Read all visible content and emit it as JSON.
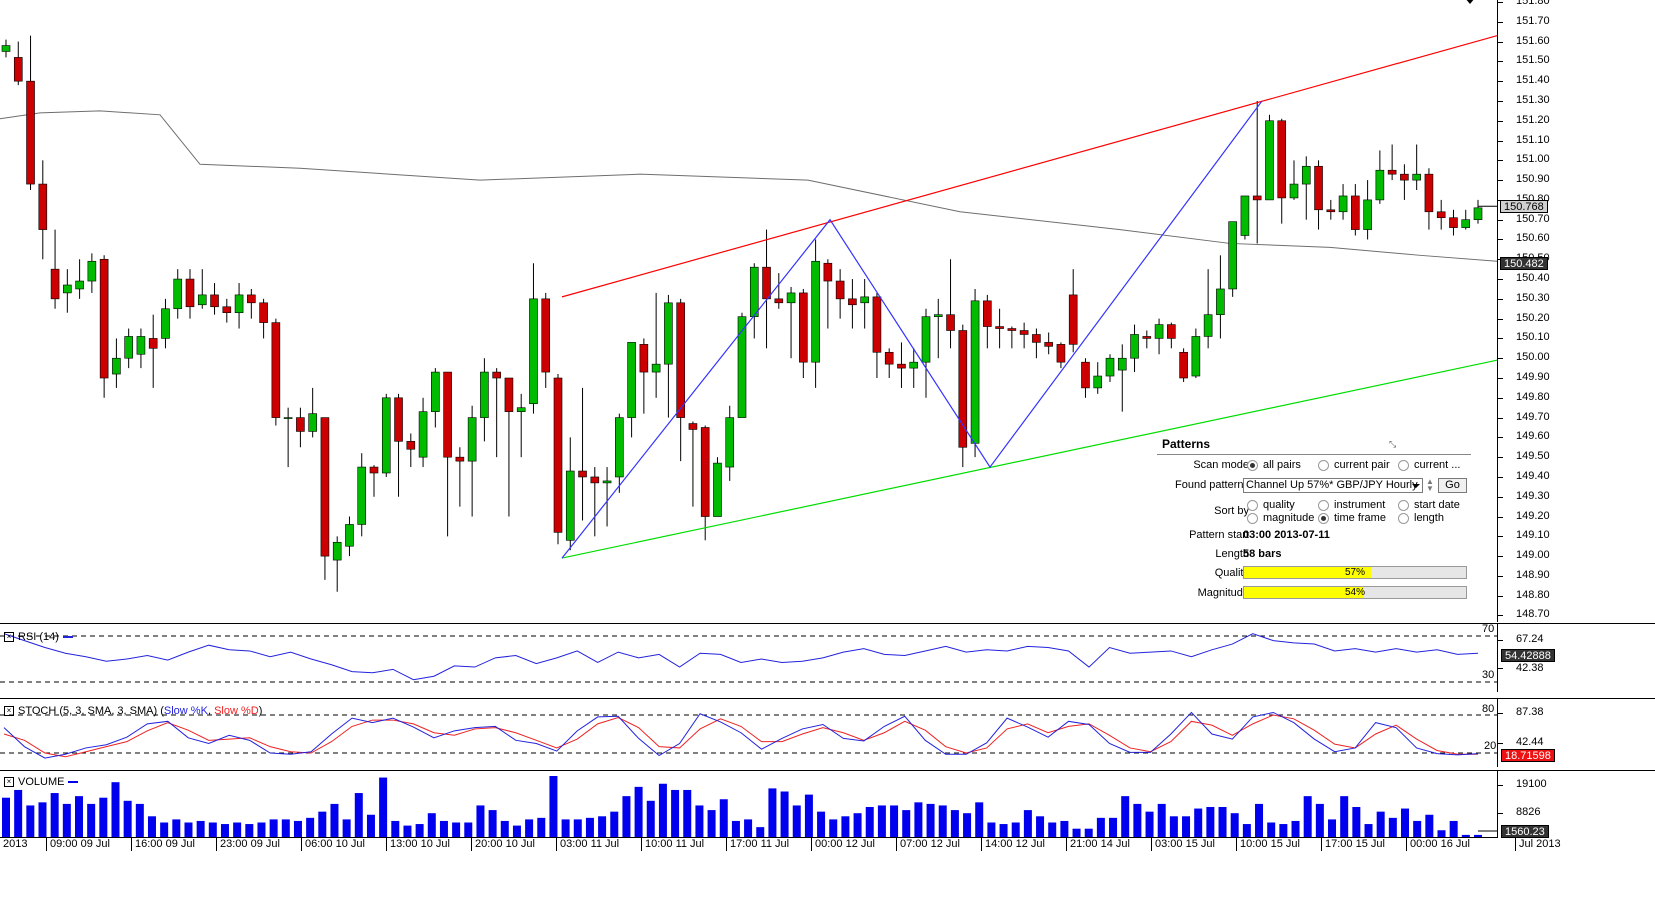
{
  "colors": {
    "up": "#00bb00",
    "down": "#cc0000",
    "ma": "#6e6e6e",
    "resistance": "#ff0000",
    "support": "#00dd00",
    "zigzag": "#3333ff",
    "rsi": "#2222dd",
    "stoch_k": "#2222dd",
    "stoch_d": "#ee2222",
    "volume": "#0000ee",
    "progress": "#ffff00"
  },
  "price_axis": {
    "ticks": [
      "151.80",
      "151.70",
      "151.60",
      "151.50",
      "151.40",
      "151.30",
      "151.20",
      "151.10",
      "151.00",
      "150.90",
      "150.80",
      "150.70",
      "150.60",
      "150.50",
      "150.40",
      "150.30",
      "150.20",
      "150.10",
      "150.00",
      "149.90",
      "149.80",
      "149.70",
      "149.60",
      "149.50",
      "149.40",
      "149.30",
      "149.20",
      "149.10",
      "149.00",
      "148.90",
      "148.80",
      "148.70"
    ],
    "current_price": "150.768",
    "ma_price": "150.482"
  },
  "candles": [
    [
      151.55,
      151.58,
      151.61,
      151.52
    ],
    [
      151.52,
      151.4,
      151.6,
      151.38
    ],
    [
      151.4,
      150.88,
      151.63,
      150.85
    ],
    [
      150.88,
      150.65,
      151.0,
      150.5
    ],
    [
      150.45,
      150.3,
      150.65,
      150.25
    ],
    [
      150.33,
      150.37,
      150.45,
      150.23
    ],
    [
      150.35,
      150.39,
      150.5,
      150.3
    ],
    [
      150.39,
      150.49,
      150.53,
      150.33
    ],
    [
      150.5,
      149.9,
      150.52,
      149.8
    ],
    [
      149.92,
      150.0,
      150.1,
      149.85
    ],
    [
      150.0,
      150.11,
      150.15,
      149.95
    ],
    [
      150.02,
      150.11,
      150.15,
      149.95
    ],
    [
      150.1,
      150.05,
      150.22,
      149.85
    ],
    [
      150.1,
      150.25,
      150.3,
      150.05
    ],
    [
      150.25,
      150.4,
      150.45,
      150.2
    ],
    [
      150.4,
      150.26,
      150.45,
      150.2
    ],
    [
      150.27,
      150.32,
      150.45,
      150.25
    ],
    [
      150.32,
      150.26,
      150.38,
      150.22
    ],
    [
      150.26,
      150.23,
      150.3,
      150.18
    ],
    [
      150.23,
      150.32,
      150.38,
      150.15
    ],
    [
      150.32,
      150.28,
      150.35,
      150.2
    ],
    [
      150.28,
      150.18,
      150.3,
      150.1
    ],
    [
      150.18,
      149.7,
      150.2,
      149.66
    ],
    [
      149.7,
      149.7,
      149.75,
      149.45
    ],
    [
      149.7,
      149.63,
      149.75,
      149.55
    ],
    [
      149.63,
      149.72,
      149.85,
      149.6
    ],
    [
      149.7,
      149.0,
      149.7,
      148.88
    ],
    [
      148.98,
      149.07,
      149.1,
      148.82
    ],
    [
      149.05,
      149.16,
      149.2,
      149.0
    ],
    [
      149.16,
      149.45,
      149.52,
      149.1
    ],
    [
      149.45,
      149.42,
      149.46,
      149.3
    ],
    [
      149.42,
      149.8,
      149.82,
      149.4
    ],
    [
      149.8,
      149.58,
      149.82,
      149.3
    ],
    [
      149.58,
      149.54,
      149.62,
      149.45
    ],
    [
      149.5,
      149.73,
      149.8,
      149.45
    ],
    [
      149.73,
      149.93,
      149.95,
      149.65
    ],
    [
      149.93,
      149.5,
      149.93,
      149.1
    ],
    [
      149.5,
      149.48,
      149.55,
      149.25
    ],
    [
      149.48,
      149.7,
      149.76,
      149.2
    ],
    [
      149.7,
      149.93,
      150.0,
      149.58
    ],
    [
      149.93,
      149.9,
      149.95,
      149.5
    ],
    [
      149.9,
      149.73,
      149.82,
      149.2
    ],
    [
      149.73,
      149.75,
      149.82,
      149.5
    ],
    [
      149.77,
      150.3,
      150.48,
      149.72
    ],
    [
      150.3,
      149.93,
      150.33,
      149.85
    ],
    [
      149.9,
      149.12,
      149.92,
      149.06
    ],
    [
      149.08,
      149.43,
      149.6,
      149.03
    ],
    [
      149.43,
      149.4,
      149.85,
      149.18
    ],
    [
      149.4,
      149.37,
      149.45,
      149.1
    ],
    [
      149.37,
      149.38,
      149.45,
      149.15
    ],
    [
      149.4,
      149.7,
      149.72,
      149.32
    ],
    [
      149.7,
      150.08,
      150.08,
      149.6
    ],
    [
      150.07,
      149.93,
      150.1,
      149.72
    ],
    [
      149.93,
      149.97,
      150.33,
      149.8
    ],
    [
      149.97,
      150.28,
      150.32,
      149.7
    ],
    [
      150.28,
      149.7,
      150.3,
      149.48
    ],
    [
      149.67,
      149.64,
      149.68,
      149.25
    ],
    [
      149.65,
      149.2,
      149.66,
      149.08
    ],
    [
      149.2,
      149.47,
      149.5,
      149.2
    ],
    [
      149.45,
      149.7,
      149.76,
      149.38
    ],
    [
      149.7,
      150.21,
      150.23,
      149.72
    ],
    [
      150.21,
      150.46,
      150.48,
      150.1
    ],
    [
      150.46,
      150.3,
      150.65,
      150.05
    ],
    [
      150.3,
      150.28,
      150.43,
      150.25
    ],
    [
      150.28,
      150.33,
      150.36,
      150.0
    ],
    [
      150.33,
      149.98,
      150.35,
      149.9
    ],
    [
      149.98,
      150.49,
      150.6,
      149.85
    ],
    [
      150.48,
      150.39,
      150.5,
      150.15
    ],
    [
      150.39,
      150.3,
      150.45,
      150.2
    ],
    [
      150.3,
      150.27,
      150.4,
      150.15
    ],
    [
      150.28,
      150.31,
      150.4,
      150.15
    ],
    [
      150.31,
      150.03,
      150.33,
      149.9
    ],
    [
      150.03,
      149.97,
      150.05,
      149.9
    ],
    [
      149.97,
      149.95,
      150.08,
      149.85
    ],
    [
      149.95,
      149.98,
      150.05,
      149.85
    ],
    [
      149.98,
      150.21,
      150.25,
      149.8
    ],
    [
      150.21,
      150.22,
      150.3,
      150.0
    ],
    [
      150.22,
      150.14,
      150.5,
      150.05
    ],
    [
      150.14,
      149.55,
      150.17,
      149.45
    ],
    [
      149.57,
      150.29,
      150.35,
      149.5
    ],
    [
      150.29,
      150.16,
      150.32,
      150.05
    ],
    [
      150.16,
      150.15,
      150.25,
      150.05
    ],
    [
      150.15,
      150.14,
      150.16,
      150.05
    ],
    [
      150.14,
      150.12,
      150.18,
      150.05
    ],
    [
      150.12,
      150.08,
      150.15,
      150.0
    ],
    [
      150.08,
      150.06,
      150.13,
      150.02
    ],
    [
      150.07,
      149.98,
      150.08,
      149.95
    ],
    [
      150.32,
      150.07,
      150.45,
      150.03
    ],
    [
      149.98,
      149.85,
      150.0,
      149.8
    ],
    [
      149.85,
      149.91,
      149.98,
      149.82
    ],
    [
      149.91,
      150.0,
      150.02,
      149.88
    ],
    [
      149.94,
      150.0,
      150.07,
      149.73
    ],
    [
      150.0,
      150.12,
      150.17,
      149.93
    ],
    [
      150.11,
      150.1,
      150.14,
      150.05
    ],
    [
      150.1,
      150.17,
      150.2,
      150.02
    ],
    [
      150.17,
      150.1,
      150.18,
      150.05
    ],
    [
      150.03,
      149.9,
      150.05,
      149.88
    ],
    [
      149.91,
      150.11,
      150.15,
      149.9
    ],
    [
      150.11,
      150.22,
      150.45,
      150.05
    ],
    [
      150.22,
      150.35,
      150.52,
      150.1
    ],
    [
      150.35,
      150.69,
      150.5,
      150.31
    ],
    [
      150.62,
      150.82,
      150.75,
      150.6
    ],
    [
      150.82,
      150.8,
      151.3,
      150.58
    ],
    [
      150.8,
      151.2,
      151.23,
      150.8
    ],
    [
      151.2,
      150.81,
      151.21,
      150.68
    ],
    [
      150.81,
      150.88,
      151.0,
      150.8
    ],
    [
      150.88,
      150.97,
      151.02,
      150.7
    ],
    [
      150.97,
      150.75,
      151.0,
      150.65
    ],
    [
      150.75,
      150.74,
      150.8,
      150.7
    ],
    [
      150.74,
      150.82,
      150.88,
      150.7
    ],
    [
      150.82,
      150.65,
      150.88,
      150.62
    ],
    [
      150.65,
      150.8,
      150.9,
      150.6
    ],
    [
      150.8,
      150.95,
      151.05,
      150.78
    ],
    [
      150.95,
      150.93,
      151.08,
      150.9
    ],
    [
      150.93,
      150.9,
      150.98,
      150.8
    ],
    [
      150.9,
      150.93,
      151.08,
      150.85
    ],
    [
      150.93,
      150.74,
      150.96,
      150.65
    ],
    [
      150.74,
      150.71,
      150.8,
      150.65
    ],
    [
      150.71,
      150.66,
      150.75,
      150.62
    ],
    [
      150.66,
      150.7,
      150.75,
      150.65
    ],
    [
      150.7,
      150.76,
      150.8,
      150.68
    ]
  ],
  "ma_points": [
    [
      0,
      151.21
    ],
    [
      40,
      151.24
    ],
    [
      100,
      151.25
    ],
    [
      160,
      151.23
    ],
    [
      200,
      150.98
    ],
    [
      300,
      150.96
    ],
    [
      480,
      150.9
    ],
    [
      640,
      150.93
    ],
    [
      808,
      150.9
    ],
    [
      960,
      150.74
    ],
    [
      1120,
      150.65
    ],
    [
      1230,
      150.58
    ],
    [
      1330,
      150.56
    ],
    [
      1420,
      150.52
    ],
    [
      1497,
      150.49
    ]
  ],
  "pattern_lines": {
    "resistance": [
      [
        562,
        150.31
      ],
      [
        1497,
        151.63
      ]
    ],
    "support": [
      [
        562,
        148.99
      ],
      [
        1497,
        149.99
      ]
    ],
    "zigzag": [
      [
        562,
        148.99
      ],
      [
        830,
        150.7
      ],
      [
        990,
        149.45
      ],
      [
        1262,
        151.3
      ]
    ]
  },
  "patterns": {
    "title": "Patterns",
    "scan_mode_label": "Scan mode",
    "scan_options": [
      "all pairs",
      "current pair",
      "current ..."
    ],
    "found_patterns_label": "Found patterns",
    "found_value": "Channel Up 57%* GBP/JPY Hourly",
    "go_label": "Go",
    "sort_by_label": "Sort by",
    "sort_options": [
      "quality",
      "instrument",
      "start date",
      "magnitude",
      "time frame",
      "length"
    ],
    "pattern_start_label": "Pattern start",
    "pattern_start_value": "03:00 2013-07-11",
    "length_label": "Length",
    "length_value": "58 bars",
    "quality_label": "Quality",
    "quality_value": "57%",
    "quality_pct": 57,
    "magnitude_label": "Magnitude",
    "magnitude_value": "54%",
    "magnitude_pct": 54
  },
  "rsi": {
    "label": "RSI (14)",
    "level_high": "70",
    "level_low": "30",
    "ticks": [
      "67.24",
      "42.38"
    ],
    "current": "54.42888",
    "series": [
      72,
      66,
      60,
      55,
      52,
      48,
      50,
      53,
      49,
      56,
      62,
      58,
      57,
      52,
      56,
      50,
      45,
      39,
      38,
      41,
      32,
      35,
      44,
      43,
      51,
      53,
      46,
      51,
      57,
      47,
      56,
      51,
      54,
      43,
      55,
      54,
      47,
      50,
      47,
      48,
      51,
      56,
      59,
      54,
      53,
      57,
      61,
      56,
      58,
      57,
      61,
      60,
      57,
      43,
      60,
      55,
      56,
      57,
      52,
      58,
      63,
      72,
      66,
      64,
      63,
      57,
      59,
      56,
      59,
      56,
      58,
      54,
      55
    ]
  },
  "stoch": {
    "label": "STOCH (5, 3, SMA, 3, SMA)",
    "k_label": "Slow %K",
    "d_label": "Slow %D",
    "level_high": "80",
    "level_low": "20",
    "ticks": [
      "87.38",
      "42.44"
    ],
    "current": "18.71598",
    "k_series": [
      60,
      30,
      12,
      18,
      28,
      33,
      45,
      66,
      70,
      44,
      35,
      48,
      40,
      20,
      18,
      22,
      50,
      75,
      68,
      75,
      61,
      44,
      55,
      60,
      62,
      40,
      35,
      23,
      55,
      77,
      78,
      43,
      16,
      35,
      82,
      69,
      52,
      26,
      43,
      58,
      65,
      43,
      39,
      62,
      78,
      40,
      18,
      18,
      36,
      75,
      61,
      45,
      70,
      65,
      35,
      21,
      21,
      50,
      84,
      50,
      42,
      77,
      84,
      68,
      42,
      22,
      28,
      68,
      60,
      28,
      19,
      17,
      19
    ],
    "d_series": [
      50,
      40,
      20,
      14,
      22,
      30,
      38,
      55,
      68,
      56,
      40,
      42,
      44,
      30,
      22,
      20,
      38,
      62,
      72,
      72,
      66,
      52,
      48,
      58,
      60,
      52,
      40,
      28,
      42,
      66,
      76,
      60,
      30,
      28,
      58,
      74,
      62,
      38,
      38,
      50,
      60,
      52,
      40,
      52,
      70,
      56,
      30,
      20,
      28,
      58,
      66,
      52,
      62,
      66,
      48,
      28,
      22,
      38,
      70,
      64,
      48,
      66,
      80,
      74,
      56,
      34,
      28,
      50,
      64,
      42,
      24,
      18,
      18
    ]
  },
  "volume": {
    "label": "VOLUME",
    "ticks": [
      "19100",
      "8826"
    ],
    "current": "1560.23",
    "series": [
      26,
      31,
      21,
      23,
      29,
      22,
      27,
      22,
      26,
      36,
      24,
      22,
      14,
      10,
      12,
      10,
      11,
      10,
      9,
      10,
      9,
      10,
      12,
      12,
      11,
      13,
      17,
      22,
      12,
      29,
      15,
      39,
      11,
      8,
      9,
      16,
      11,
      10,
      10,
      21,
      18,
      11,
      8,
      12,
      13,
      40,
      12,
      12,
      13,
      14,
      17,
      27,
      33,
      24,
      35,
      31,
      31,
      21,
      18,
      25,
      11,
      12,
      7,
      32,
      30,
      21,
      28,
      17,
      12,
      14,
      16,
      20,
      21,
      21,
      18,
      23,
      22,
      21,
      18,
      16,
      23,
      10,
      9,
      10,
      18,
      14,
      10,
      11,
      6,
      6,
      13,
      13,
      27,
      22,
      17,
      22,
      14,
      14,
      19,
      20,
      20,
      16,
      9,
      22,
      10,
      9,
      11,
      27,
      22,
      12,
      27,
      20,
      9,
      17,
      13,
      19,
      11,
      15,
      5,
      11,
      2,
      2
    ]
  },
  "time_axis": [
    "2013",
    "09:00 09 Jul",
    "16:00 09 Jul",
    "23:00 09 Jul",
    "06:00 10 Jul",
    "13:00 10 Jul",
    "20:00 10 Jul",
    "03:00 11 Jul",
    "10:00 11 Jul",
    "17:00 11 Jul",
    "00:00 12 Jul",
    "07:00 12 Jul",
    "14:00 12 Jul",
    "21:00 14 Jul",
    "03:00 15 Jul",
    "10:00 15 Jul",
    "17:00 15 Jul",
    "00:00 16 Jul",
    "Jul 2013"
  ]
}
